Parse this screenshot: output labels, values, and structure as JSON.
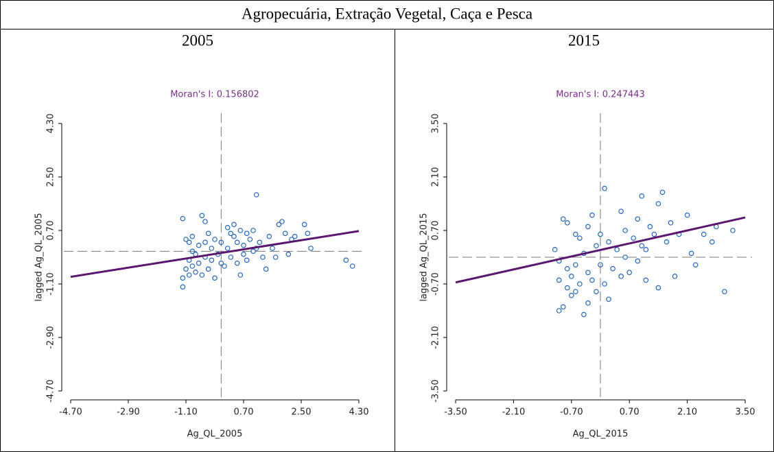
{
  "title": "Agropecuária, Extração Vegetal, Caça e Pesca",
  "chart_data": [
    {
      "type": "scatter",
      "heading": "2005",
      "title": "Moran's I: 0.156802",
      "x_label": "Ag_QL_2005",
      "y_label": "lagged Ag_QL_2005",
      "xlim": [
        -4.7,
        4.3
      ],
      "ylim": [
        -4.7,
        4.3
      ],
      "xticks": [
        {
          "value": -4.7,
          "label": "-4.70"
        },
        {
          "value": -2.9,
          "label": "-2.90"
        },
        {
          "value": -1.1,
          "label": "-1.10"
        },
        {
          "value": 0.7,
          "label": "0.70"
        },
        {
          "value": 2.5,
          "label": "2.50"
        },
        {
          "value": 4.3,
          "label": "4.30"
        }
      ],
      "yticks": [
        {
          "value": -4.7,
          "label": "-4.70"
        },
        {
          "value": -2.9,
          "label": "-2.90"
        },
        {
          "value": -1.1,
          "label": "-1.10"
        },
        {
          "value": 0.7,
          "label": "0.70"
        },
        {
          "value": 2.5,
          "label": "2.50"
        },
        {
          "value": 4.3,
          "label": "4.30"
        }
      ],
      "x": [
        -1.2,
        -1.1,
        -1.0,
        -1.2,
        -1.2,
        -1.1,
        -1.0,
        -0.9,
        -0.9,
        -0.8,
        -0.8,
        -0.7,
        -0.7,
        -0.6,
        -0.5,
        -0.5,
        -0.4,
        -0.4,
        -0.3,
        -0.3,
        -0.2,
        -0.2,
        -0.1,
        0,
        0.1,
        0.2,
        0.2,
        0.3,
        0.4,
        0.4,
        0.5,
        0.5,
        0.6,
        0.6,
        0.7,
        0.8,
        0.8,
        0.9,
        1.0,
        1.0,
        1.1,
        1.1,
        1.2,
        1.3,
        1.4,
        1.5,
        1.6,
        1.7,
        1.8,
        1.9,
        2.0,
        2.1,
        2.2,
        2.3,
        2.6,
        2.7,
        2.8,
        3.9,
        4.1,
        -0.6,
        -0.9,
        -1.0,
        0,
        0.3,
        -0.5,
        0.7
      ],
      "y": [
        1.1,
        0.4,
        0.3,
        -0.9,
        -1.2,
        -0.6,
        -0.3,
        0.5,
        -0.5,
        -0.1,
        -0.7,
        0.2,
        -0.4,
        1.2,
        1.0,
        -0.2,
        0.6,
        -0.6,
        0.1,
        -0.3,
        -0.9,
        0.4,
        -0.1,
        0.3,
        -0.5,
        0.8,
        0.1,
        -0.2,
        0.9,
        0.5,
        -0.4,
        0.3,
        0.7,
        -0.8,
        0.2,
        0.6,
        -0.3,
        0.4,
        0,
        0.7,
        1.9,
        0.1,
        0.3,
        -0.2,
        -0.6,
        0.5,
        0.1,
        -0.2,
        0.9,
        1.0,
        0.6,
        -0.1,
        0.4,
        0.5,
        0.9,
        0.6,
        0.1,
        -0.3,
        -0.5,
        -0.8,
        0,
        -0.8,
        -0.4,
        0.6,
        0.3,
        -0.1
      ],
      "color": "#2266c4",
      "fit_line": {
        "x": [
          -4.7,
          4.3
        ],
        "y": [
          -0.86,
          0.68
        ],
        "color": "#5b1670"
      },
      "reference_lines": {
        "x": 0,
        "y": 0
      }
    },
    {
      "type": "scatter",
      "heading": "2015",
      "title": "Moran's I: 0.247443",
      "x_label": "Ag_QL_2015",
      "y_label": "lagged Ag_QL_2015",
      "xlim": [
        -3.5,
        3.5
      ],
      "ylim": [
        -3.5,
        3.5
      ],
      "xticks": [
        {
          "value": -3.5,
          "label": "-3.50"
        },
        {
          "value": -2.1,
          "label": "-2.10"
        },
        {
          "value": -0.7,
          "label": "-0.70"
        },
        {
          "value": 0.7,
          "label": "0.70"
        },
        {
          "value": 2.1,
          "label": "2.10"
        },
        {
          "value": 3.5,
          "label": "3.50"
        }
      ],
      "yticks": [
        {
          "value": -3.5,
          "label": "-3.50"
        },
        {
          "value": -2.1,
          "label": "-2.10"
        },
        {
          "value": -0.7,
          "label": "-0.70"
        },
        {
          "value": 0.7,
          "label": "0.70"
        },
        {
          "value": 2.1,
          "label": "2.10"
        },
        {
          "value": 3.5,
          "label": "3.50"
        }
      ],
      "x": [
        -1.1,
        -1.0,
        -1.0,
        -1.0,
        -0.9,
        -0.9,
        -0.8,
        -0.8,
        -0.8,
        -0.7,
        -0.7,
        -0.6,
        -0.6,
        -0.5,
        -0.5,
        -0.4,
        -0.4,
        -0.3,
        -0.3,
        -0.2,
        -0.2,
        -0.1,
        -0.1,
        0,
        0,
        0.1,
        0.1,
        0.2,
        0.3,
        0.4,
        0.5,
        0.5,
        0.6,
        0.6,
        0.7,
        0.8,
        0.9,
        0.9,
        1.0,
        1.0,
        1.1,
        1.2,
        1.3,
        1.4,
        1.4,
        1.5,
        1.6,
        1.7,
        1.8,
        1.9,
        2.1,
        2.2,
        2.3,
        2.5,
        2.7,
        2.8,
        3.0,
        3.2,
        -0.6,
        0.2,
        -0.3,
        1.1
      ],
      "y": [
        0.2,
        -0.1,
        -0.6,
        -1.4,
        -1.3,
        1.0,
        0.9,
        -0.3,
        -0.8,
        -0.5,
        -1.0,
        -0.2,
        -0.9,
        0.5,
        -0.7,
        0.1,
        -1.5,
        0.8,
        -0.4,
        1.1,
        -0.6,
        0.3,
        -0.9,
        0.6,
        -0.2,
        1.8,
        -0.7,
        0.4,
        -0.3,
        0.2,
        1.2,
        -0.5,
        0.7,
        0,
        -0.4,
        0.5,
        1.0,
        -0.1,
        1.6,
        0.3,
        -0.6,
        0.8,
        0.6,
        1.4,
        -0.8,
        1.7,
        0.4,
        0.9,
        -0.5,
        0.6,
        1.1,
        0.1,
        -0.2,
        0.6,
        0.4,
        0.8,
        -0.9,
        0.7,
        0.6,
        -1.1,
        -1.2,
        0.2
      ],
      "color": "#2266c4",
      "fit_line": {
        "x": [
          -3.5,
          3.5
        ],
        "y": [
          -0.66,
          1.04
        ],
        "color": "#5b1670"
      },
      "reference_lines": {
        "x": 0,
        "y": 0
      }
    }
  ]
}
